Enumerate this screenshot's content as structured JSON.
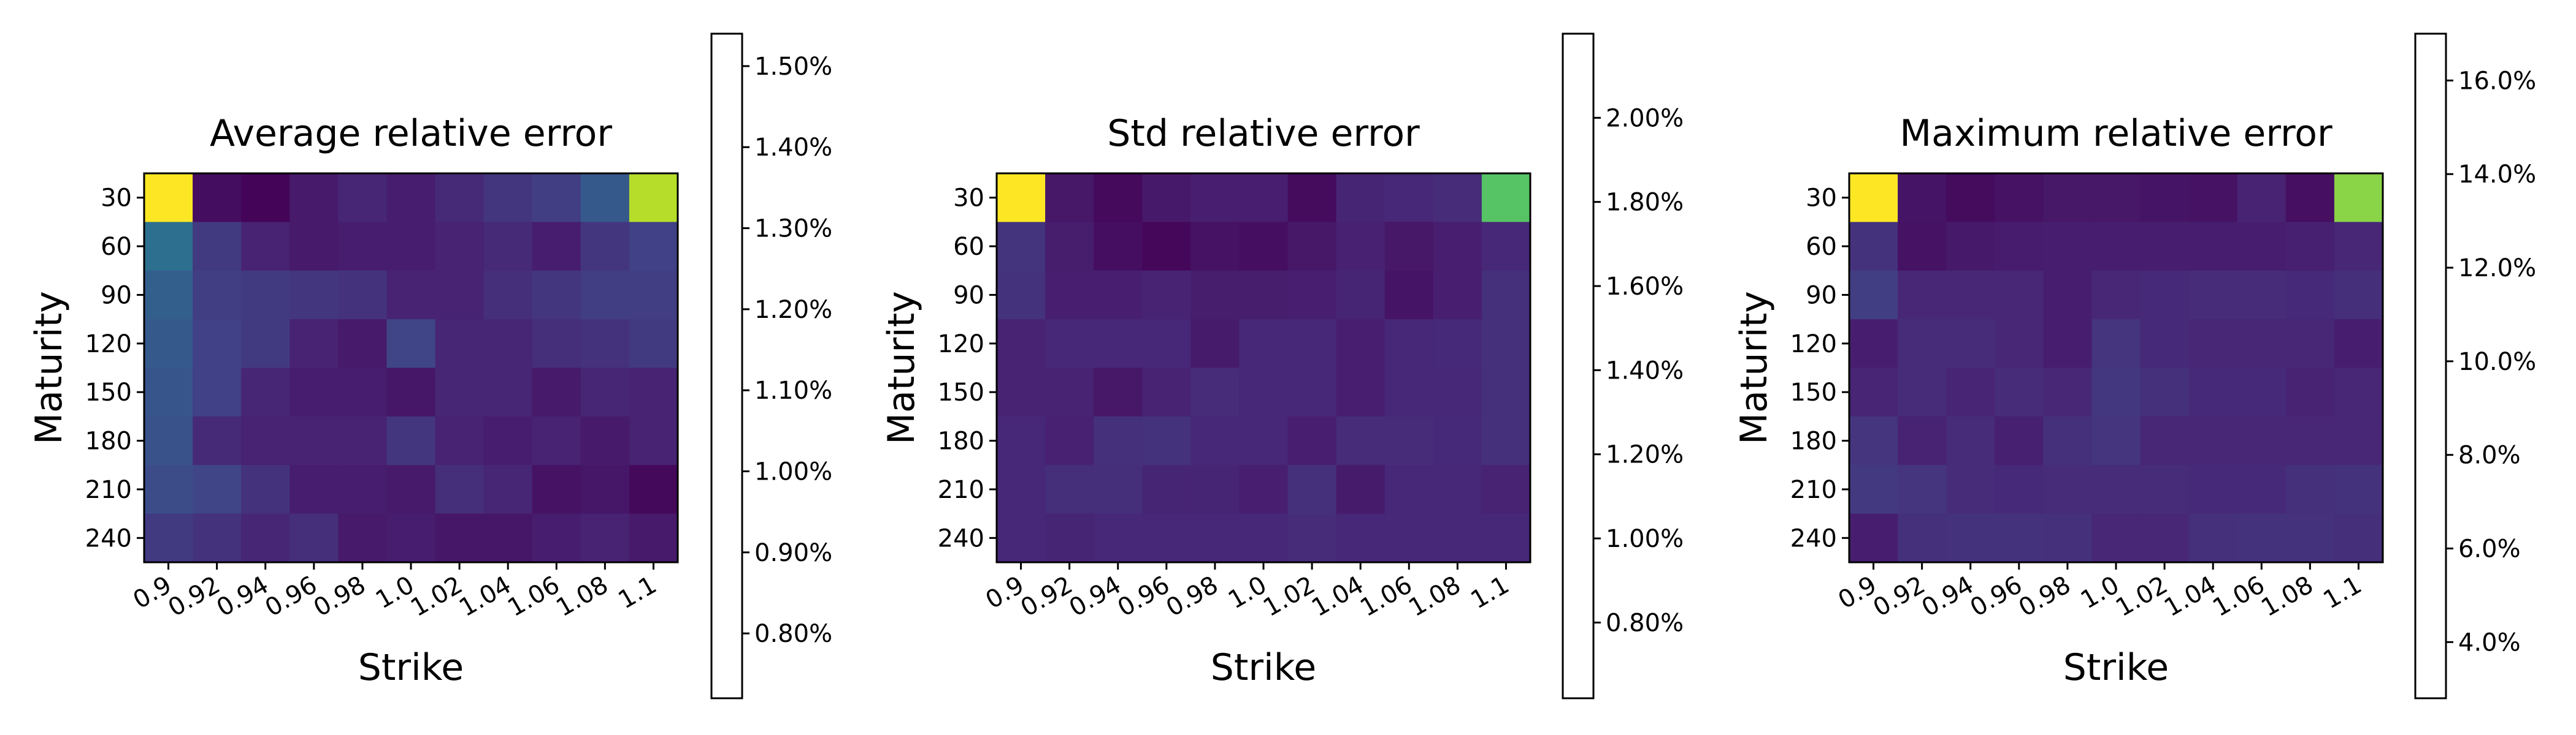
{
  "chart_data": [
    {
      "type": "heatmap",
      "title": "Average relative error",
      "xlabel": "Strike",
      "ylabel": "Maturity",
      "x_categories": [
        "0.9",
        "0.92",
        "0.94",
        "0.96",
        "0.98",
        "1.0",
        "1.02",
        "1.04",
        "1.06",
        "1.08",
        "1.1"
      ],
      "y_categories": [
        "30",
        "60",
        "90",
        "120",
        "150",
        "180",
        "210",
        "240"
      ],
      "value_unit": "%",
      "colormap": "viridis",
      "colorbar": {
        "min": 0.72,
        "max": 1.54,
        "ticks": [
          0.8,
          0.9,
          1.0,
          1.1,
          1.2,
          1.3,
          1.4,
          1.5
        ],
        "tick_labels": [
          "0.80%",
          "0.90%",
          "1.00%",
          "1.10%",
          "1.20%",
          "1.30%",
          "1.40%",
          "1.50%"
        ]
      },
      "values": [
        [
          1.54,
          0.75,
          0.73,
          0.78,
          0.81,
          0.79,
          0.82,
          0.85,
          0.87,
          0.95,
          1.45
        ],
        [
          1.02,
          0.86,
          0.8,
          0.78,
          0.79,
          0.79,
          0.8,
          0.82,
          0.79,
          0.85,
          0.88
        ],
        [
          0.97,
          0.87,
          0.86,
          0.85,
          0.84,
          0.8,
          0.8,
          0.83,
          0.85,
          0.87,
          0.87
        ],
        [
          0.95,
          0.88,
          0.86,
          0.8,
          0.78,
          0.89,
          0.81,
          0.81,
          0.83,
          0.84,
          0.86
        ],
        [
          0.94,
          0.88,
          0.81,
          0.79,
          0.79,
          0.77,
          0.81,
          0.81,
          0.78,
          0.81,
          0.8
        ],
        [
          0.93,
          0.82,
          0.8,
          0.8,
          0.8,
          0.85,
          0.8,
          0.79,
          0.8,
          0.78,
          0.8
        ],
        [
          0.91,
          0.89,
          0.84,
          0.79,
          0.79,
          0.78,
          0.83,
          0.81,
          0.76,
          0.77,
          0.74
        ],
        [
          0.86,
          0.84,
          0.81,
          0.83,
          0.78,
          0.79,
          0.77,
          0.77,
          0.79,
          0.8,
          0.78
        ]
      ]
    },
    {
      "type": "heatmap",
      "title": "Std relative error",
      "xlabel": "Strike",
      "ylabel": "Maturity",
      "x_categories": [
        "0.9",
        "0.92",
        "0.94",
        "0.96",
        "0.98",
        "1.0",
        "1.02",
        "1.04",
        "1.06",
        "1.08",
        "1.1"
      ],
      "y_categories": [
        "30",
        "60",
        "90",
        "120",
        "150",
        "180",
        "210",
        "240"
      ],
      "value_unit": "%",
      "colormap": "viridis",
      "colorbar": {
        "min": 0.62,
        "max": 2.2,
        "ticks": [
          0.8,
          1.0,
          1.2,
          1.4,
          1.6,
          1.8,
          2.0
        ],
        "tick_labels": [
          "0.80%",
          "1.00%",
          "1.20%",
          "1.40%",
          "1.60%",
          "1.80%",
          "2.00%"
        ]
      },
      "values": [
        [
          2.2,
          0.72,
          0.66,
          0.73,
          0.76,
          0.76,
          0.67,
          0.79,
          0.8,
          0.82,
          1.78
        ],
        [
          0.86,
          0.75,
          0.68,
          0.65,
          0.7,
          0.68,
          0.72,
          0.77,
          0.72,
          0.76,
          0.8
        ],
        [
          0.85,
          0.76,
          0.76,
          0.78,
          0.75,
          0.75,
          0.76,
          0.79,
          0.71,
          0.76,
          0.84
        ],
        [
          0.78,
          0.8,
          0.8,
          0.8,
          0.74,
          0.8,
          0.8,
          0.76,
          0.8,
          0.81,
          0.84
        ],
        [
          0.78,
          0.78,
          0.72,
          0.78,
          0.82,
          0.8,
          0.8,
          0.76,
          0.8,
          0.8,
          0.84
        ],
        [
          0.8,
          0.77,
          0.84,
          0.85,
          0.8,
          0.8,
          0.76,
          0.82,
          0.82,
          0.81,
          0.84
        ],
        [
          0.8,
          0.83,
          0.83,
          0.79,
          0.79,
          0.76,
          0.84,
          0.74,
          0.8,
          0.8,
          0.78
        ],
        [
          0.8,
          0.79,
          0.8,
          0.8,
          0.8,
          0.8,
          0.82,
          0.8,
          0.8,
          0.8,
          0.8
        ]
      ]
    },
    {
      "type": "heatmap",
      "title": "Maximum relative error",
      "xlabel": "Strike",
      "ylabel": "Maturity",
      "x_categories": [
        "0.9",
        "0.92",
        "0.94",
        "0.96",
        "0.98",
        "1.0",
        "1.02",
        "1.04",
        "1.06",
        "1.08",
        "1.1"
      ],
      "y_categories": [
        "30",
        "60",
        "90",
        "120",
        "150",
        "180",
        "210",
        "240"
      ],
      "value_unit": "%",
      "colormap": "viridis",
      "colorbar": {
        "min": 2.8,
        "max": 17.0,
        "ticks": [
          4.0,
          6.0,
          8.0,
          10.0,
          12.0,
          14.0,
          16.0
        ],
        "tick_labels": [
          "4.0%",
          "6.0%",
          "8.0%",
          "10.0%",
          "12.0%",
          "14.0%",
          "16.0%"
        ]
      },
      "values": [
        [
          17.0,
          3.6,
          3.2,
          3.5,
          3.7,
          3.7,
          3.6,
          3.5,
          4.2,
          3.4,
          14.5
        ],
        [
          4.9,
          3.5,
          3.8,
          3.9,
          4.0,
          4.0,
          4.0,
          4.0,
          4.0,
          4.1,
          4.4
        ],
        [
          5.4,
          4.4,
          4.4,
          4.4,
          4.0,
          4.4,
          4.5,
          4.6,
          4.6,
          4.5,
          4.7
        ],
        [
          4.0,
          4.6,
          4.6,
          4.4,
          4.0,
          5.0,
          4.5,
          4.4,
          4.4,
          4.4,
          4.0
        ],
        [
          4.3,
          4.6,
          4.3,
          4.6,
          4.4,
          5.1,
          4.8,
          4.5,
          4.5,
          4.2,
          4.4
        ],
        [
          5.0,
          4.2,
          4.6,
          4.1,
          4.8,
          5.0,
          4.4,
          4.4,
          4.4,
          4.4,
          4.4
        ],
        [
          5.2,
          5.0,
          4.6,
          4.5,
          4.6,
          4.6,
          4.6,
          4.5,
          4.5,
          4.8,
          4.9
        ],
        [
          4.0,
          4.8,
          4.9,
          4.9,
          4.8,
          4.4,
          4.4,
          4.8,
          4.9,
          4.9,
          4.7
        ]
      ]
    }
  ]
}
